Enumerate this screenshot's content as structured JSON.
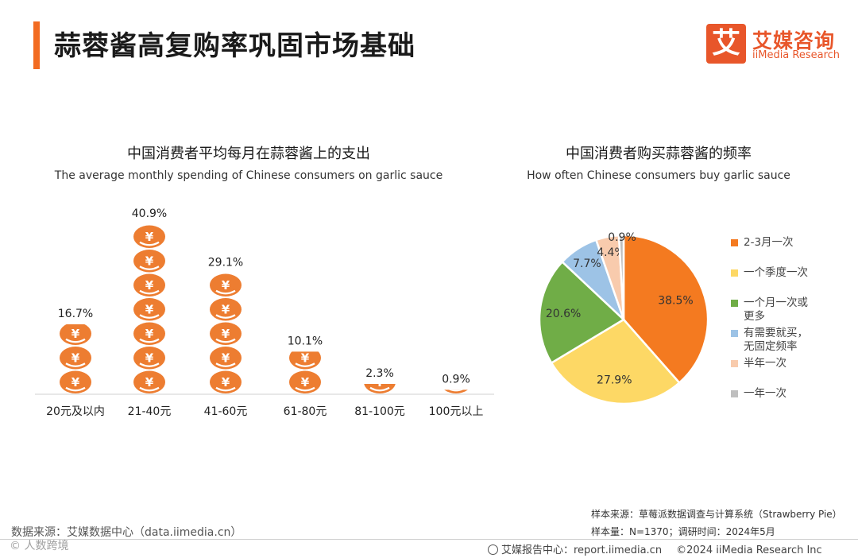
{
  "header": {
    "title": "蒜蓉酱高复购率巩固市场基础",
    "logo_cn": "艾媒咨询",
    "logo_en": "iiMedia Research",
    "logo_mark": "艾",
    "accent_color": "#f26b21"
  },
  "chart_data": [
    {
      "type": "bar",
      "title": "中国消费者平均每月在蒜蓉酱上的支出",
      "subtitle": "The average monthly spending of Chinese consumers on garlic sauce",
      "categories": [
        "20元及以内",
        "21-40元",
        "41-60元",
        "61-80元",
        "81-100元",
        "100元以上"
      ],
      "values": [
        16.7,
        40.9,
        29.1,
        10.1,
        2.3,
        0.9
      ],
      "value_labels": [
        "16.7%",
        "40.9%",
        "29.1%",
        "10.1%",
        "2.3%",
        "0.9%"
      ],
      "mark_icon": "yuan-coin-icon",
      "mark_color": "#ed7d31",
      "ylim": [
        0,
        45
      ]
    },
    {
      "type": "pie",
      "title": "中国消费者购买蒜蓉酱的频率",
      "subtitle": "How often Chinese consumers buy garlic sauce",
      "labels": [
        "2-3月一次",
        "一个季度一次",
        "一个月一次或更多",
        "有需要就买，无固定频率",
        "半年一次",
        "一年一次"
      ],
      "legend_lines": [
        [
          "2-3月一次"
        ],
        [
          "一个季度一次"
        ],
        [
          "一个月一次或",
          "更多"
        ],
        [
          "有需要就买，",
          "无固定频率"
        ],
        [
          "半年一次"
        ],
        [
          "一年一次"
        ]
      ],
      "values": [
        38.5,
        27.9,
        20.6,
        7.7,
        4.4,
        0.9
      ],
      "value_labels": [
        "38.5%",
        "27.9%",
        "20.6%",
        "7.7%",
        "4.4%",
        "0.9%"
      ],
      "colors": [
        "#f47a20",
        "#fdd865",
        "#70ad47",
        "#9dc3e6",
        "#f8cbad",
        "#bfbfbf"
      ],
      "legend_position": "right"
    }
  ],
  "sources": {
    "left": "数据来源：艾媒数据中心（data.iimedia.cn）",
    "watermark": "© 人数跨境",
    "sample_source": "样本来源：草莓派数据调查与计算系统（Strawberry Pie）",
    "sample_size": "样本量：N=1370；调研时间：2024年5月"
  },
  "footer": {
    "report_center": "艾媒报告中心：report.iimedia.cn",
    "copyright": "©2024  iiMedia Research  Inc"
  }
}
